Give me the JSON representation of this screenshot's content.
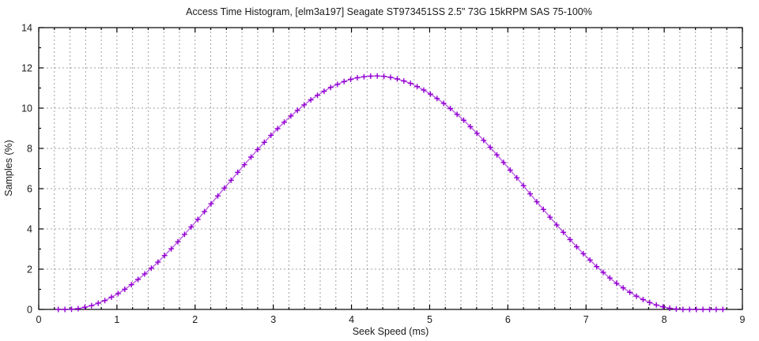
{
  "chart_data": {
    "type": "line",
    "title": "Access Time Histogram, [elm3a197] Seagate ST973451SS 2.5\" 73G 15kRPM SAS 75-100%",
    "xlabel": "Seek Speed (ms)",
    "ylabel": "Samples (%)",
    "xlim": [
      0,
      9
    ],
    "ylim": [
      0,
      14
    ],
    "xticks": [
      0,
      1,
      2,
      3,
      4,
      5,
      6,
      7,
      8,
      9
    ],
    "yticks": [
      0,
      2,
      4,
      6,
      8,
      10,
      12,
      14
    ],
    "x_minor_step": 0.2,
    "y_minor_step": 1,
    "grid": {
      "vertical": "every 0.2 (minor ticks), dashed",
      "horizontal": "every 2 (major ticks), dashed"
    },
    "legend": "none",
    "marker": "plus",
    "colors": {
      "marker": "#9400d3",
      "line": "rgba(148,0,211,0.68)",
      "grid": "#a2a2a2",
      "axis": "#000000",
      "text": "#1a1a1a"
    },
    "points": [
      [
        0.25,
        0
      ],
      [
        0.335,
        0
      ],
      [
        0.42,
        0.01
      ],
      [
        0.505,
        0.04
      ],
      [
        0.59,
        0.11
      ],
      [
        0.675,
        0.19
      ],
      [
        0.76,
        0.31
      ],
      [
        0.845,
        0.44
      ],
      [
        0.93,
        0.61
      ],
      [
        1.015,
        0.79
      ],
      [
        1.1,
        1.0
      ],
      [
        1.185,
        1.23
      ],
      [
        1.27,
        1.49
      ],
      [
        1.355,
        1.76
      ],
      [
        1.44,
        2.05
      ],
      [
        1.525,
        2.35
      ],
      [
        1.61,
        2.68
      ],
      [
        1.695,
        3.01
      ],
      [
        1.78,
        3.36
      ],
      [
        1.865,
        3.73
      ],
      [
        1.95,
        4.1
      ],
      [
        2.035,
        4.47
      ],
      [
        2.12,
        4.86
      ],
      [
        2.205,
        5.25
      ],
      [
        2.29,
        5.64
      ],
      [
        2.375,
        6.03
      ],
      [
        2.46,
        6.42
      ],
      [
        2.545,
        6.81
      ],
      [
        2.63,
        7.19
      ],
      [
        2.715,
        7.57
      ],
      [
        2.8,
        7.94
      ],
      [
        2.885,
        8.3
      ],
      [
        2.97,
        8.65
      ],
      [
        3.055,
        8.98
      ],
      [
        3.14,
        9.3
      ],
      [
        3.225,
        9.61
      ],
      [
        3.31,
        9.89
      ],
      [
        3.395,
        10.16
      ],
      [
        3.48,
        10.41
      ],
      [
        3.565,
        10.64
      ],
      [
        3.65,
        10.84
      ],
      [
        3.735,
        11.03
      ],
      [
        3.82,
        11.18
      ],
      [
        3.905,
        11.32
      ],
      [
        3.99,
        11.43
      ],
      [
        4.075,
        11.51
      ],
      [
        4.16,
        11.56
      ],
      [
        4.245,
        11.59
      ],
      [
        4.33,
        11.6
      ],
      [
        4.415,
        11.58
      ],
      [
        4.5,
        11.53
      ],
      [
        4.585,
        11.45
      ],
      [
        4.67,
        11.35
      ],
      [
        4.755,
        11.23
      ],
      [
        4.84,
        11.07
      ],
      [
        4.925,
        10.9
      ],
      [
        5.01,
        10.7
      ],
      [
        5.095,
        10.48
      ],
      [
        5.18,
        10.24
      ],
      [
        5.265,
        9.98
      ],
      [
        5.35,
        9.69
      ],
      [
        5.435,
        9.4
      ],
      [
        5.52,
        9.08
      ],
      [
        5.605,
        8.75
      ],
      [
        5.69,
        8.4
      ],
      [
        5.775,
        8.05
      ],
      [
        5.86,
        7.68
      ],
      [
        5.945,
        7.3
      ],
      [
        6.03,
        6.92
      ],
      [
        6.115,
        6.54
      ],
      [
        6.2,
        6.15
      ],
      [
        6.285,
        5.74
      ],
      [
        6.37,
        5.35
      ],
      [
        6.455,
        4.97
      ],
      [
        6.54,
        4.58
      ],
      [
        6.625,
        4.2
      ],
      [
        6.71,
        3.83
      ],
      [
        6.795,
        3.47
      ],
      [
        6.88,
        3.11
      ],
      [
        6.965,
        2.77
      ],
      [
        7.05,
        2.45
      ],
      [
        7.135,
        2.13
      ],
      [
        7.22,
        1.84
      ],
      [
        7.305,
        1.56
      ],
      [
        7.39,
        1.3
      ],
      [
        7.475,
        1.07
      ],
      [
        7.56,
        0.85
      ],
      [
        7.645,
        0.66
      ],
      [
        7.73,
        0.49
      ],
      [
        7.815,
        0.34
      ],
      [
        7.9,
        0.22
      ],
      [
        7.985,
        0.13
      ],
      [
        8.07,
        0.06
      ],
      [
        8.155,
        0.02
      ],
      [
        8.24,
        0
      ],
      [
        8.325,
        0
      ],
      [
        8.41,
        0
      ],
      [
        8.495,
        0
      ],
      [
        8.58,
        0
      ],
      [
        8.665,
        0
      ],
      [
        8.75,
        0
      ]
    ]
  }
}
